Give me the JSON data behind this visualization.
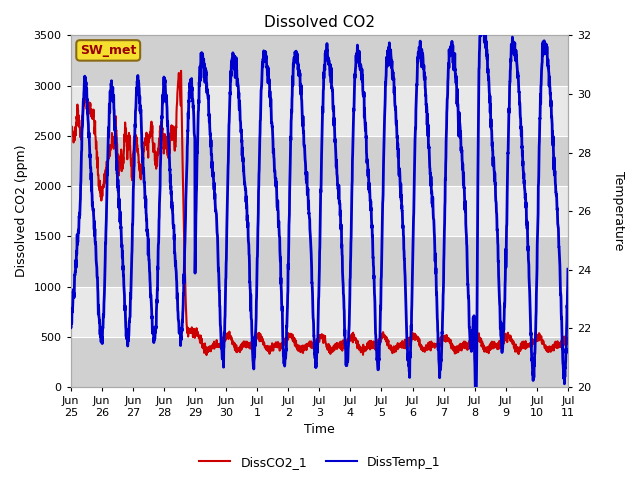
{
  "title": "Dissolved CO2",
  "xlabel": "Time",
  "ylabel_left": "Dissolved CO2 (ppm)",
  "ylabel_right": "Temperature",
  "ylim_left": [
    0,
    3500
  ],
  "ylim_right": [
    20,
    32
  ],
  "yticks_left": [
    0,
    500,
    1000,
    1500,
    2000,
    2500,
    3000,
    3500
  ],
  "yticks_right": [
    20,
    22,
    24,
    26,
    28,
    30,
    32
  ],
  "color_co2": "#cc0000",
  "color_temp": "#0000cc",
  "fig_facecolor": "#ffffff",
  "axes_facecolor": "#e0e0e0",
  "legend_label_co2": "DissCO2_1",
  "legend_label_temp": "DissTemp_1",
  "station_label": "SW_met",
  "station_facecolor": "#f5e030",
  "station_edgecolor": "#8B6914",
  "tick_labels": [
    "Jun\n25",
    "Jun\n26",
    "Jun\n27",
    "Jun\n28",
    "Jun\n29",
    "Jun\n30",
    "Jul\n1",
    "Jul\n2",
    "Jul\n3",
    "Jul\n4",
    "Jul\n5",
    "Jul\n6",
    "Jul\n7",
    "Jul\n8",
    "Jul\n9",
    "Jul\n10",
    "Jul\n11"
  ],
  "num_days": 16,
  "grid_color": "#ffffff",
  "linewidth_co2": 1.5,
  "linewidth_temp": 2.0
}
